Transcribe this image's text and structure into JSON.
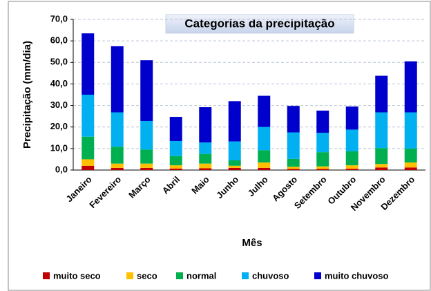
{
  "chart_data": {
    "type": "stacked_bar",
    "title": "Categorias da precipitação",
    "xlabel": "Mês",
    "ylabel": "Precipitação (mm/dia)",
    "categories": [
      "Janeiro",
      "Fevereiro",
      "Março",
      "Abril",
      "Maio",
      "Junho",
      "Julho",
      "Agosto",
      "Setembro",
      "Outubro",
      "Novembro",
      "Dezembro"
    ],
    "series": [
      {
        "name": "muito seco",
        "color": "#c00000",
        "values": [
          2,
          1,
          1,
          0.7,
          0.8,
          1,
          1,
          0.5,
          0.5,
          0.6,
          1.2,
          1.2
        ]
      },
      {
        "name": "seco",
        "color": "#ffc000",
        "values": [
          3,
          2,
          2,
          1.5,
          2.2,
          1,
          2.5,
          1,
          1.2,
          1.6,
          1.6,
          2.3
        ]
      },
      {
        "name": "normal",
        "color": "#00b050",
        "values": [
          10.5,
          7.8,
          6.5,
          4.3,
          4.5,
          2.5,
          5.7,
          3.7,
          6.6,
          6.5,
          7.4,
          6.5
        ]
      },
      {
        "name": "chuvoso",
        "color": "#00b0f0",
        "values": [
          19.5,
          16,
          13.3,
          7,
          5.3,
          8.8,
          10.8,
          12.3,
          9,
          10.1,
          16.6,
          16.8
        ]
      },
      {
        "name": "muito chuvoso",
        "color": "#0000cc",
        "values": [
          28.5,
          30.7,
          28.2,
          11.2,
          16.4,
          18.7,
          14.5,
          12.3,
          10.3,
          10.7,
          17,
          23.7
        ]
      }
    ],
    "ylim": [
      0,
      70
    ],
    "yticks": [
      {
        "value": 0,
        "label": "0,0"
      },
      {
        "value": 10,
        "label": "10,0"
      },
      {
        "value": 20,
        "label": "20,0"
      },
      {
        "value": 30,
        "label": "30,0"
      },
      {
        "value": 40,
        "label": "40,0"
      },
      {
        "value": 50,
        "label": "50,0"
      },
      {
        "value": 60,
        "label": "60,0"
      },
      {
        "value": 70,
        "label": "70,0"
      }
    ],
    "grid": true,
    "legend": "bottom"
  }
}
